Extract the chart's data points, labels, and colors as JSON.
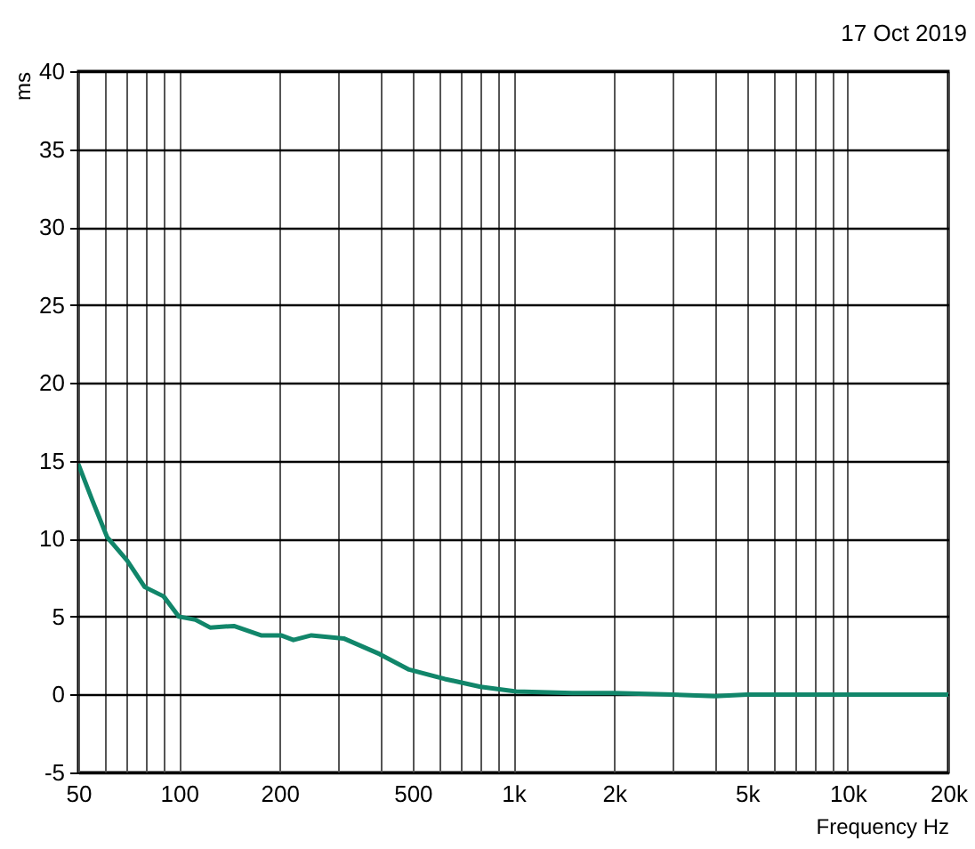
{
  "chart_data": {
    "type": "line",
    "xlabel": "Frequency Hz",
    "ylabel": "ms",
    "annotations": [
      "17 Oct 2019"
    ],
    "log": "x",
    "grid": true,
    "marker": "none",
    "line_style": "solid",
    "xlim": [
      50,
      20000
    ],
    "ylim": [
      -5,
      40
    ],
    "xticks": [
      50,
      {
        "value": 60,
        "label": null
      },
      {
        "value": 70,
        "label": null
      },
      {
        "value": 80,
        "label": null
      },
      {
        "value": 90,
        "label": null
      },
      100,
      200,
      {
        "value": 300,
        "label": null
      },
      {
        "value": 400,
        "label": null
      },
      500,
      {
        "value": 600,
        "label": null
      },
      {
        "value": 700,
        "label": null
      },
      {
        "value": 800,
        "label": null
      },
      {
        "value": 900,
        "label": null
      },
      {
        "value": 1000,
        "label": "1k"
      },
      {
        "value": 2000,
        "label": "2k"
      },
      {
        "value": 3000,
        "label": null
      },
      {
        "value": 4000,
        "label": null
      },
      {
        "value": 5000,
        "label": "5k"
      },
      {
        "value": 6000,
        "label": null
      },
      {
        "value": 7000,
        "label": null
      },
      {
        "value": 8000,
        "label": null
      },
      {
        "value": 9000,
        "label": null
      },
      {
        "value": 10000,
        "label": "10k"
      },
      {
        "value": 20000,
        "label": "20k"
      }
    ],
    "yticks": [
      -5,
      0,
      5,
      10,
      15,
      20,
      25,
      30,
      35,
      40
    ],
    "x": [
      50,
      55,
      61,
      70,
      79,
      90,
      100,
      112,
      124,
      146,
      176,
      202,
      220,
      249,
      311,
      398,
      488,
      624,
      798,
      1020,
      1500,
      2000,
      3000,
      4000,
      5000,
      7000,
      10000,
      15000,
      20000
    ],
    "series": [
      {
        "color": "#11866a",
        "values": [
          14.8,
          12.5,
          10.1,
          8.6,
          6.9,
          6.3,
          5.0,
          4.8,
          4.3,
          4.4,
          3.8,
          3.8,
          3.5,
          3.8,
          3.6,
          2.6,
          1.6,
          1.0,
          0.5,
          0.2,
          0.1,
          0.1,
          0,
          -0.1,
          0,
          0,
          0,
          0,
          0
        ]
      }
    ]
  }
}
